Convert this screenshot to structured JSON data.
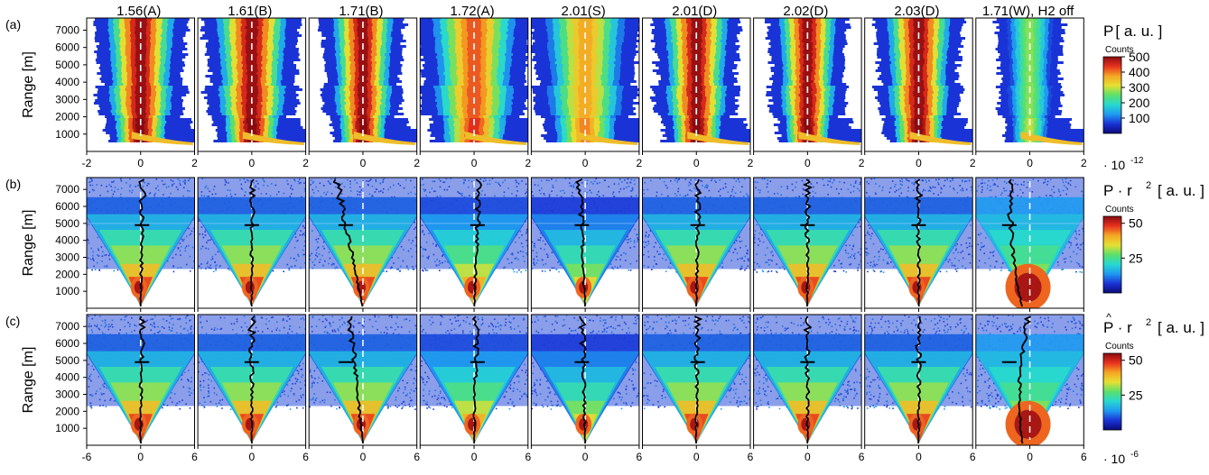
{
  "figure": {
    "panel_titles": [
      "1.56(A)",
      "1.61(B)",
      "1.71(B)",
      "1.72(A)",
      "2.01(S)",
      "2.01(D)",
      "2.02(D)",
      "2.03(D)",
      "1.71(W), H2 off"
    ],
    "colormap": [
      "#0b0a7a",
      "#1a33d6",
      "#1f9bf0",
      "#27d9d0",
      "#5be06a",
      "#e6e032",
      "#f5a623",
      "#e8321e",
      "#8a0a10"
    ]
  },
  "chart_data": [
    {
      "type": "heatmap",
      "row_label": "(a)",
      "ylabel": "Range [m]",
      "yticks": [
        1000,
        2000,
        3000,
        4000,
        5000,
        6000,
        7000
      ],
      "ylim": [
        0,
        7700
      ],
      "xlim": [
        -2,
        2
      ],
      "xticks": [
        "-2",
        "0",
        "2"
      ],
      "x_multiplier": "· 10",
      "x_exponent": "-12",
      "colorbar": {
        "title_main": "P",
        "title_sup": "",
        "title_unit": "[ a. u. ]",
        "hat": false,
        "label": "Counts",
        "ticks": [
          "500",
          "400",
          "300",
          "200",
          "100"
        ],
        "range": [
          0,
          500
        ]
      },
      "style": "power"
    },
    {
      "type": "heatmap",
      "row_label": "(b)",
      "ylabel": "Range [m]",
      "yticks": [
        1000,
        2000,
        3000,
        4000,
        5000,
        6000,
        7000
      ],
      "ylim": [
        0,
        7700
      ],
      "xlim": [
        -6,
        6
      ],
      "xticks": [],
      "colorbar": {
        "title_main": "P · r",
        "title_sup": "2",
        "title_unit": "[ a. u. ]",
        "hat": false,
        "label": "Counts",
        "ticks": [
          "50",
          "25"
        ],
        "range": [
          0,
          55
        ]
      },
      "style": "rcs"
    },
    {
      "type": "heatmap",
      "row_label": "(c)",
      "ylabel": "Range [m]",
      "yticks": [
        1000,
        2000,
        3000,
        4000,
        5000,
        6000,
        7000
      ],
      "ylim": [
        0,
        7700
      ],
      "xlim": [
        -6,
        6
      ],
      "xticks": [
        "-6",
        "0",
        "6"
      ],
      "x_multiplier": "· 10",
      "x_exponent": "-6",
      "colorbar": {
        "title_main": "P · r",
        "title_sup": "2",
        "title_unit": "[ a. u. ]",
        "hat": true,
        "label": "Counts",
        "ticks": [
          "50",
          "25"
        ],
        "range": [
          0,
          55
        ]
      },
      "style": "rcs"
    }
  ]
}
